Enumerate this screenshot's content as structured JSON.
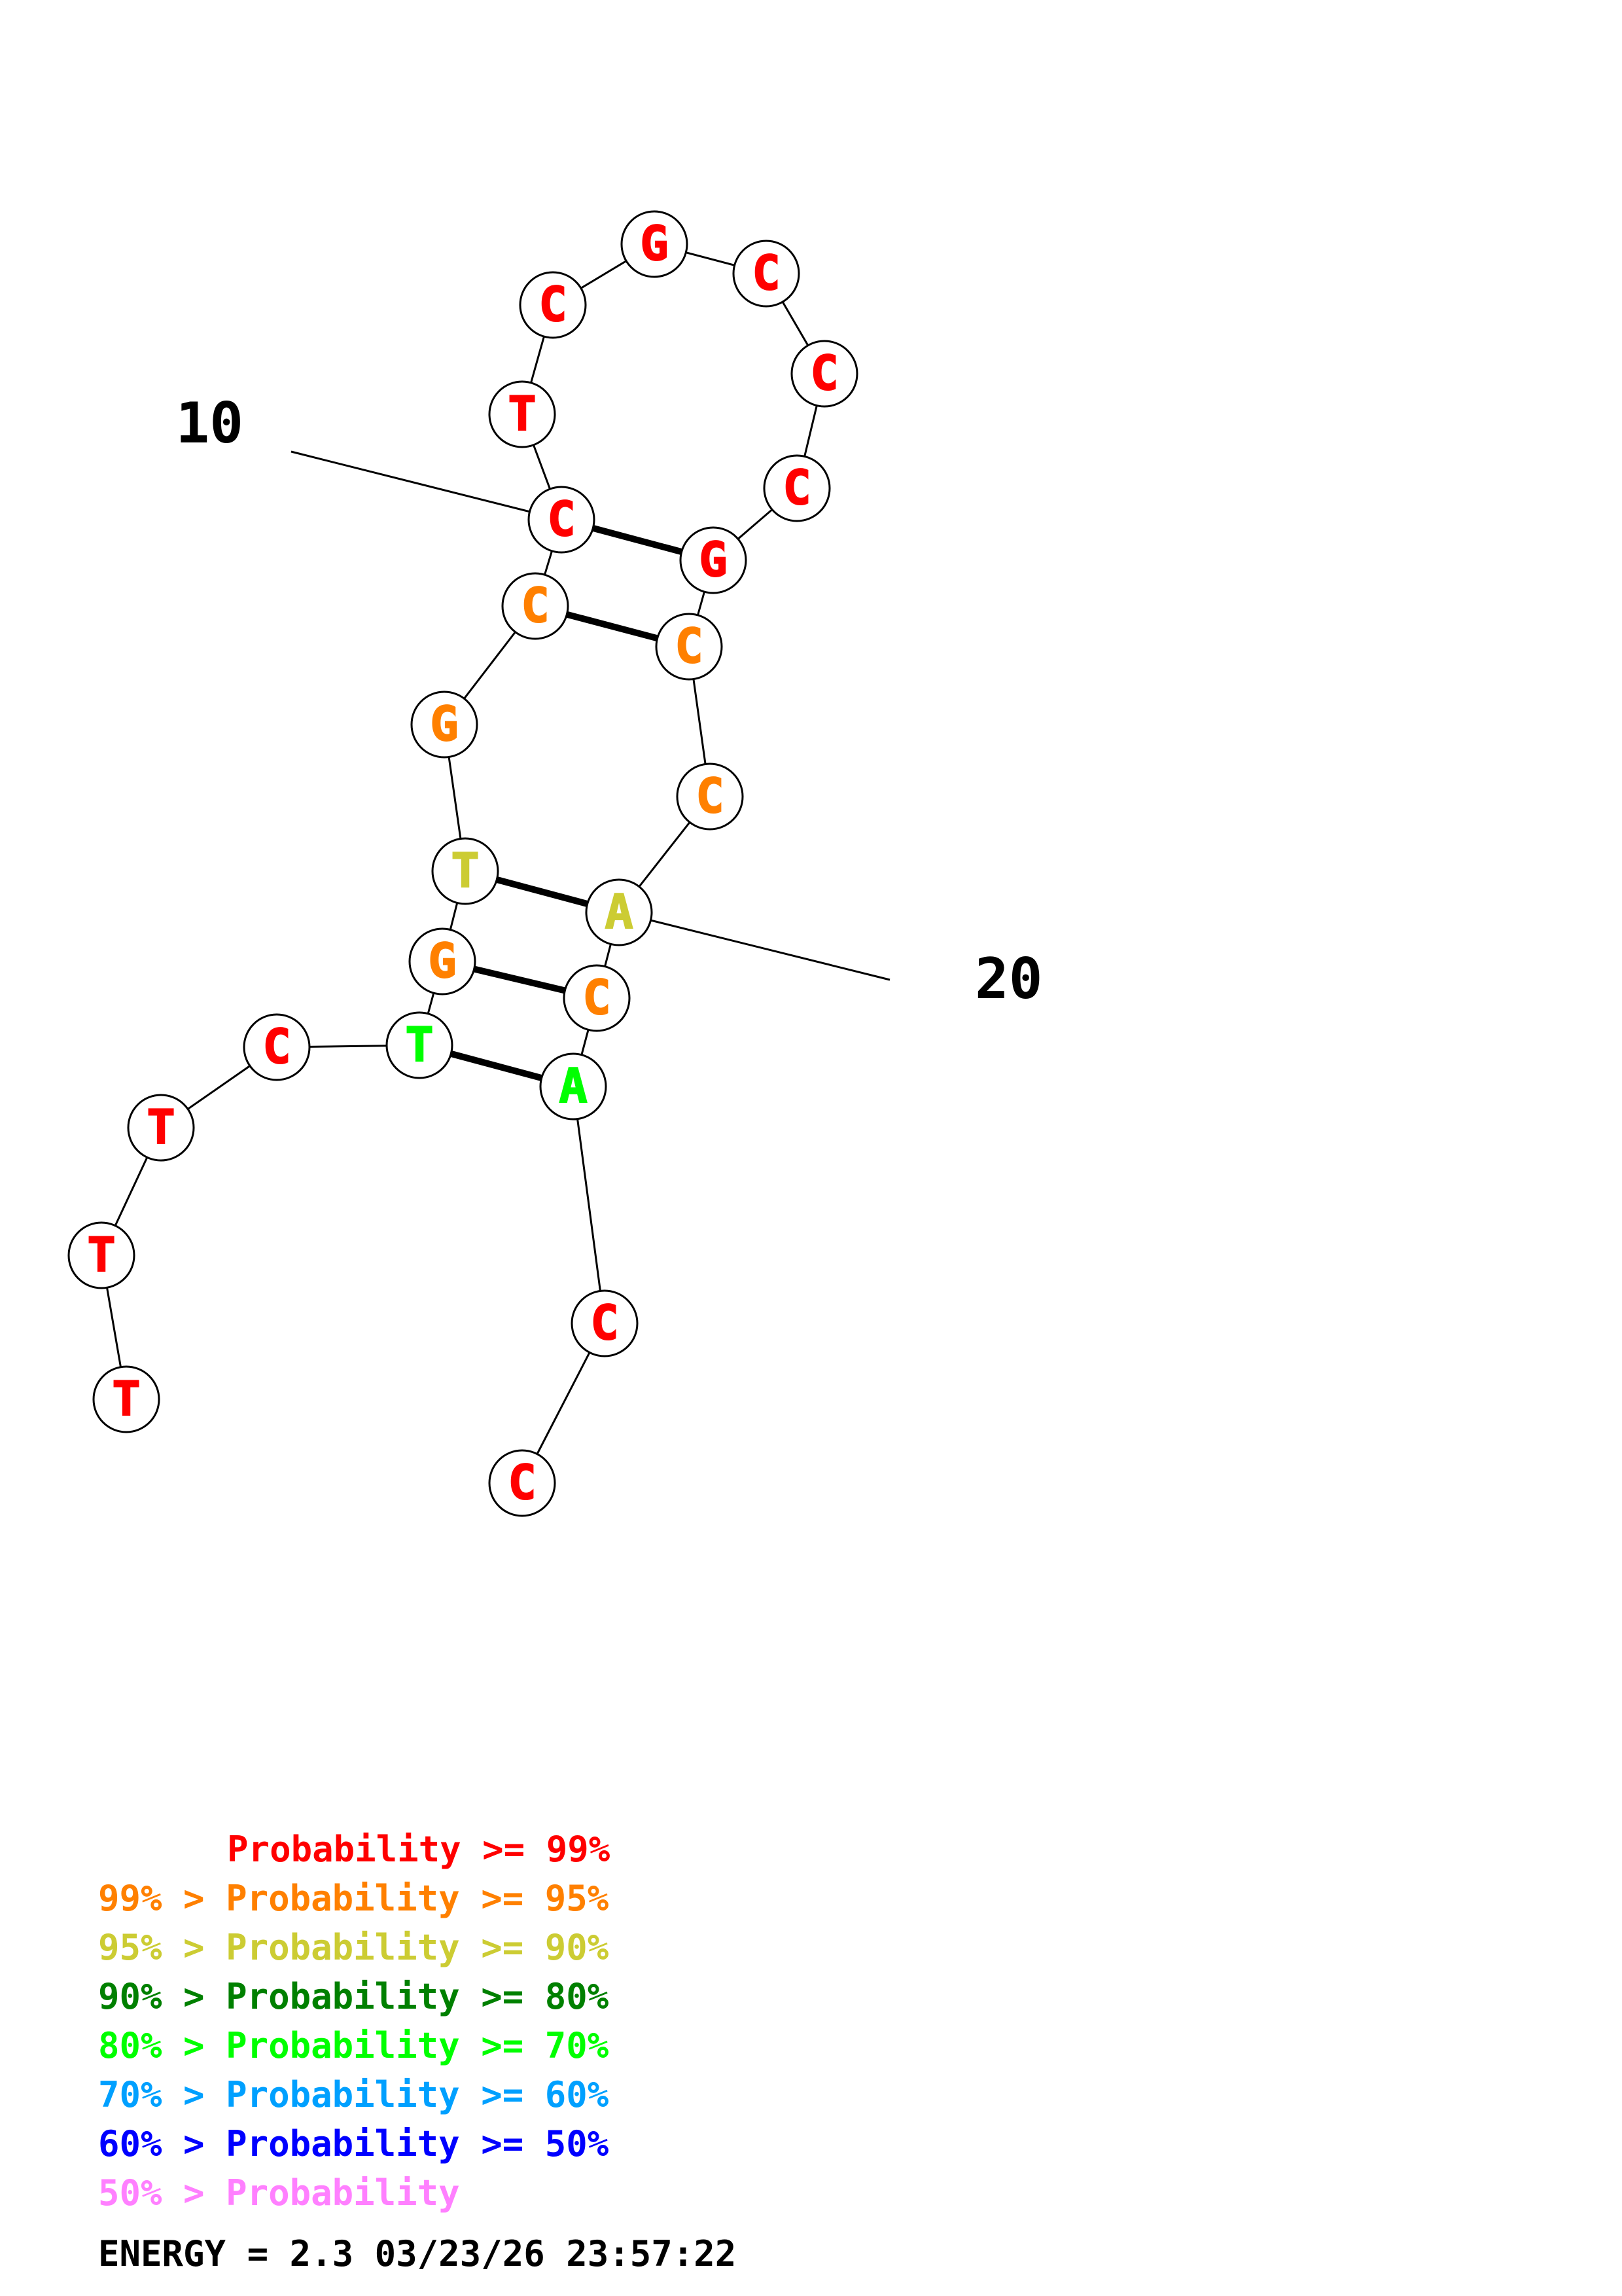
{
  "structure": {
    "sequence": [
      "T",
      "T",
      "T",
      "C",
      "T",
      "G",
      "T",
      "G",
      "C",
      "C",
      "T",
      "C",
      "G",
      "C",
      "C",
      "C",
      "G",
      "C",
      "C",
      "A",
      "C",
      "A",
      "C",
      "C"
    ],
    "colors": [
      "red",
      "red",
      "red",
      "red",
      "green",
      "orange",
      "yellow",
      "orange",
      "orange",
      "red",
      "red",
      "red",
      "red",
      "red",
      "red",
      "red",
      "red",
      "orange",
      "orange",
      "yellow",
      "orange",
      "green",
      "red",
      "red"
    ],
    "pairs": [
      [
        5,
        22
      ],
      [
        6,
        21
      ],
      [
        7,
        20
      ],
      [
        9,
        18
      ],
      [
        10,
        17
      ]
    ],
    "position_labels": [
      {
        "nt": 10,
        "text": "10"
      },
      {
        "nt": 20,
        "text": "20"
      }
    ]
  },
  "palette": {
    "red": "#ff0000",
    "orange": "#ff8000",
    "yellow": "#cccc33",
    "darkgreen": "#008000",
    "green": "#00ff00",
    "cyan": "#00a0ff",
    "blue": "#0000ff",
    "pink": "#ff80ff",
    "black": "#000000"
  },
  "legend": [
    {
      "prefix": "",
      "text": "Probability >= 99%",
      "color": "red"
    },
    {
      "prefix": "99% > ",
      "text": "Probability >= 95%",
      "color": "orange"
    },
    {
      "prefix": "95% > ",
      "text": "Probability >= 90%",
      "color": "yellow"
    },
    {
      "prefix": "90% > ",
      "text": "Probability >= 80%",
      "color": "darkgreen"
    },
    {
      "prefix": "80% > ",
      "text": "Probability >= 70%",
      "color": "green"
    },
    {
      "prefix": "70% > ",
      "text": "Probability >= 60%",
      "color": "cyan"
    },
    {
      "prefix": "60% > ",
      "text": "Probability >= 50%",
      "color": "blue"
    },
    {
      "prefix": "50% > ",
      "text": "Probability",
      "color": "pink"
    }
  ],
  "footer": {
    "energy_text": "ENERGY = 2.3  03/23/26 23:57:22"
  }
}
